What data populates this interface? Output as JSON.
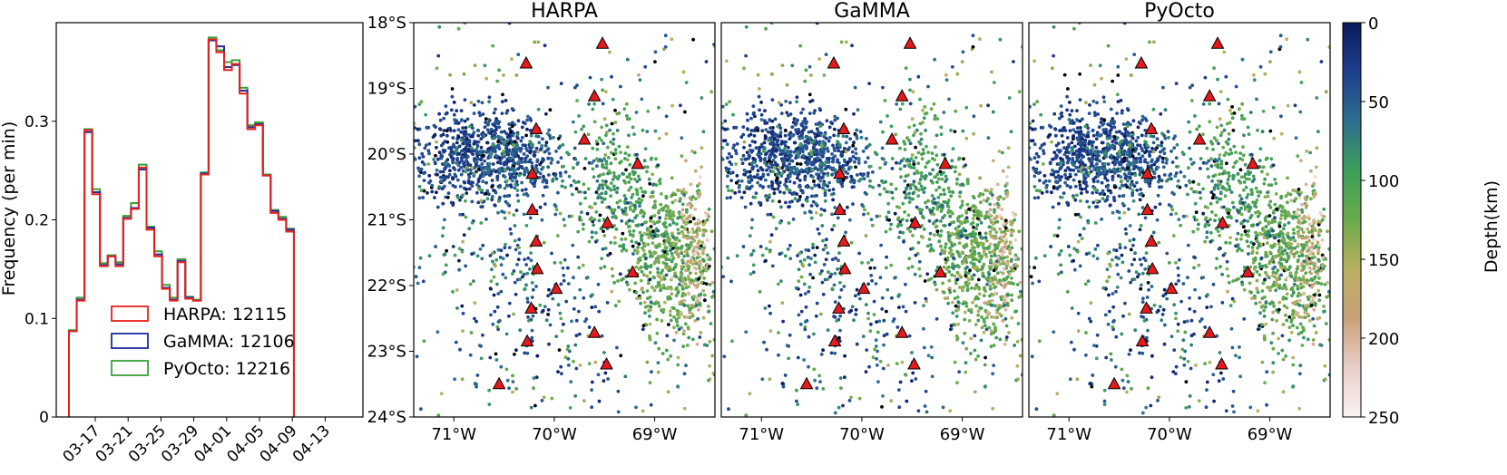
{
  "chart_data": [
    {
      "type": "step-histogram",
      "ylabel": "Frequency (per min)",
      "ylim": [
        0,
        0.4
      ],
      "yticks": [
        0,
        0.1,
        0.2,
        0.3
      ],
      "ytick_labels": [
        "0",
        "0.1",
        "0.2",
        "0.3"
      ],
      "xtick_labels": [
        "03-17",
        "03-21",
        "03-25",
        "03-29",
        "04-01",
        "04-05",
        "04-09",
        "04-13"
      ],
      "series": [
        {
          "name": "HARPA",
          "label": "HARPA: 12115",
          "color": "#e8211c",
          "values": [
            0.087,
            0.118,
            0.291,
            0.226,
            0.153,
            0.163,
            0.153,
            0.201,
            0.211,
            0.253,
            0.19,
            0.163,
            0.13,
            0.118,
            0.157,
            0.12,
            0.118,
            0.246,
            0.383,
            0.37,
            0.352,
            0.358,
            0.328,
            0.292,
            0.296,
            0.245,
            0.207,
            0.2,
            0.188
          ]
        },
        {
          "name": "GaMMA",
          "label": "GaMMA: 12106",
          "color": "#1f2e9c",
          "values": [
            0.087,
            0.119,
            0.289,
            0.228,
            0.154,
            0.163,
            0.155,
            0.202,
            0.212,
            0.251,
            0.192,
            0.165,
            0.131,
            0.119,
            0.158,
            0.121,
            0.118,
            0.247,
            0.382,
            0.376,
            0.355,
            0.357,
            0.331,
            0.294,
            0.297,
            0.245,
            0.209,
            0.201,
            0.19
          ]
        },
        {
          "name": "PyOcto",
          "label": "PyOcto: 12216",
          "color": "#3a9e3a",
          "values": [
            0.088,
            0.121,
            0.292,
            0.231,
            0.156,
            0.164,
            0.157,
            0.204,
            0.217,
            0.256,
            0.193,
            0.168,
            0.134,
            0.121,
            0.16,
            0.122,
            0.119,
            0.248,
            0.385,
            0.372,
            0.36,
            0.362,
            0.334,
            0.296,
            0.299,
            0.246,
            0.21,
            0.203,
            0.191
          ]
        }
      ]
    },
    {
      "type": "scatter-map",
      "titles": [
        "HARPA",
        "GaMMA",
        "PyOcto"
      ],
      "lon_range": [
        -71.4,
        -68.4
      ],
      "lat_range": [
        -24,
        -18
      ],
      "lon_ticks": [
        -71,
        -70,
        -69
      ],
      "lon_tick_labels": [
        "71°W",
        "70°W",
        "69°W"
      ],
      "lat_ticks": [
        -18,
        -19,
        -20,
        -21,
        -22,
        -23,
        -24
      ],
      "lat_tick_labels": [
        "18°S",
        "19°S",
        "20°S",
        "21°S",
        "22°S",
        "23°S",
        "24°S"
      ],
      "stations": [
        [
          -70.28,
          -18.62
        ],
        [
          -69.52,
          -18.32
        ],
        [
          -69.6,
          -19.12
        ],
        [
          -70.18,
          -19.62
        ],
        [
          -69.7,
          -19.78
        ],
        [
          -69.17,
          -20.15
        ],
        [
          -70.22,
          -20.3
        ],
        [
          -70.22,
          -20.85
        ],
        [
          -69.47,
          -21.05
        ],
        [
          -70.18,
          -21.33
        ],
        [
          -70.17,
          -21.75
        ],
        [
          -69.22,
          -21.8
        ],
        [
          -69.98,
          -22.05
        ],
        [
          -70.23,
          -22.35
        ],
        [
          -69.6,
          -22.72
        ],
        [
          -70.27,
          -22.85
        ],
        [
          -69.48,
          -23.2
        ],
        [
          -70.55,
          -23.5
        ]
      ]
    },
    {
      "type": "colorbar",
      "label": "Depth(km)",
      "range": [
        0,
        250
      ],
      "ticks": [
        0,
        50,
        100,
        150,
        200,
        250
      ],
      "tick_labels": [
        "0",
        "50",
        "100",
        "150",
        "200",
        "250"
      ],
      "colors": [
        "#0b1a5a",
        "#1f3f8e",
        "#2e6f8f",
        "#3c9e5c",
        "#6aaa4a",
        "#b9b060",
        "#c9a07a",
        "#e8cfc8",
        "#fbf2f2"
      ]
    }
  ]
}
